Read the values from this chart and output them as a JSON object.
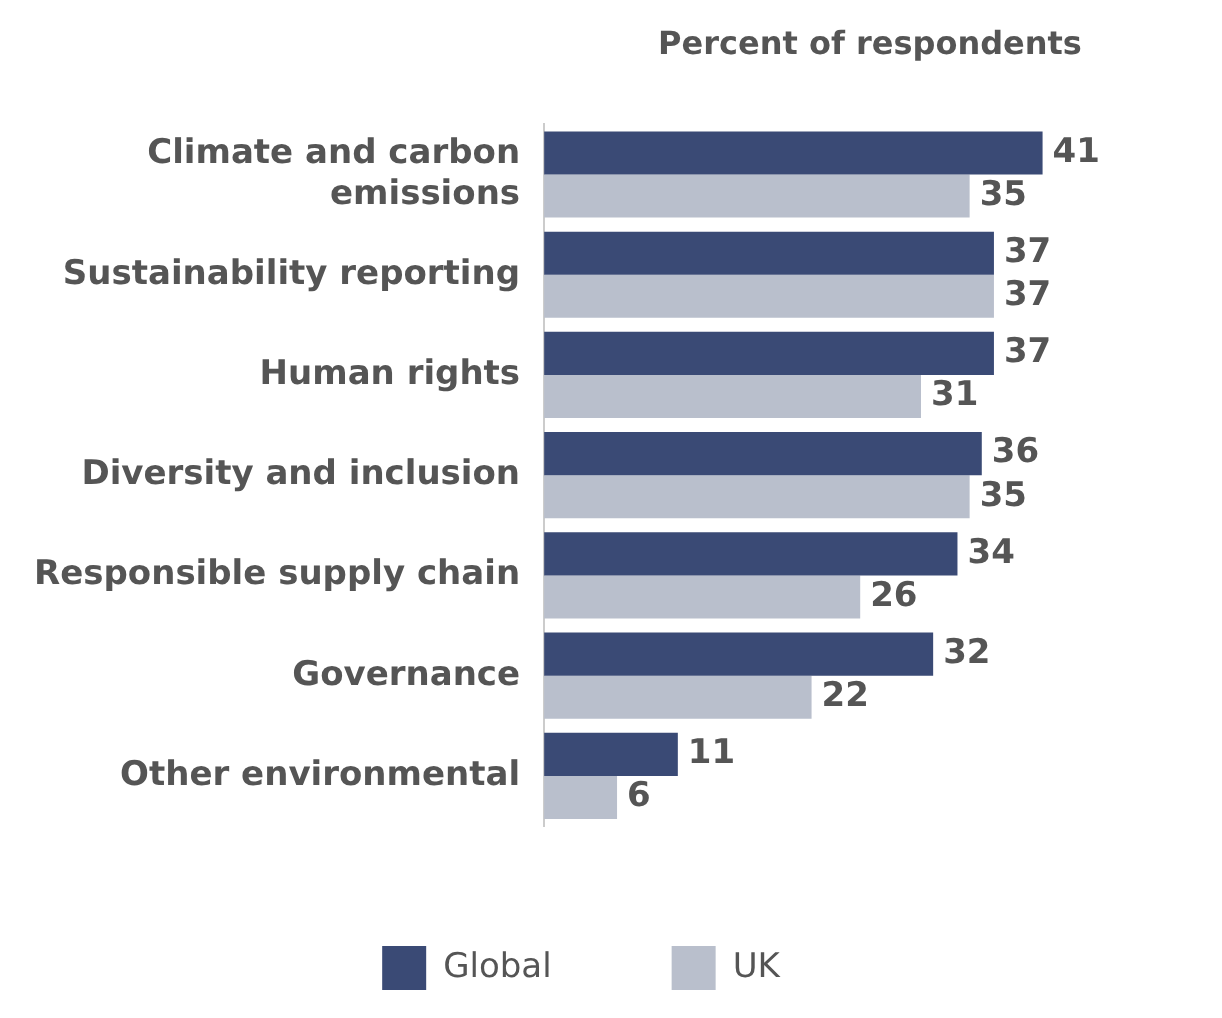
{
  "chart_data": {
    "type": "bar",
    "orientation": "horizontal",
    "title": "Percent of respondents",
    "categories": [
      "Climate and carbon emissions",
      "Sustainability reporting",
      "Human rights",
      "Diversity and inclusion",
      "Responsible supply chain",
      "Governance",
      "Other environmental"
    ],
    "series": [
      {
        "name": "Global",
        "color": "#3a4a75",
        "values": [
          41,
          37,
          37,
          36,
          34,
          32,
          11
        ]
      },
      {
        "name": "UK",
        "color": "#b9bfcc",
        "values": [
          35,
          37,
          31,
          35,
          26,
          22,
          6
        ]
      }
    ],
    "data_labels": true,
    "legend": "bottom"
  }
}
